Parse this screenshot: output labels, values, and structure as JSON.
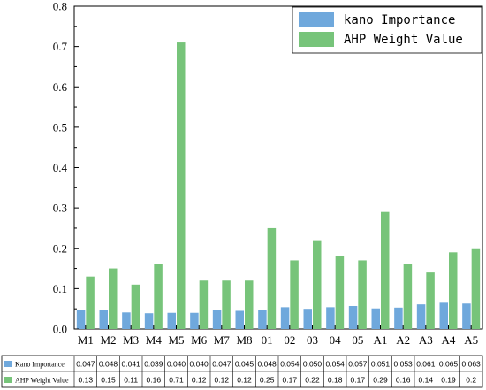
{
  "chart_data": {
    "type": "bar",
    "categories": [
      "M1",
      "M2",
      "M3",
      "M4",
      "M5",
      "M6",
      "M7",
      "M8",
      "O1",
      "O2",
      "O3",
      "O4",
      "O5",
      "A1",
      "A2",
      "A3",
      "A4",
      "A5"
    ],
    "category_labels": [
      "M1",
      "M2",
      "M3",
      "M4",
      "M5",
      "M6",
      "M7",
      "M8",
      "01",
      "02",
      "03",
      "04",
      "05",
      "A1",
      "A2",
      "A3",
      "A4",
      "A5"
    ],
    "series": [
      {
        "name": "kano Importance",
        "table_name": "Kano Importance",
        "color": "#6fa8dc",
        "values": [
          0.047,
          0.048,
          0.041,
          0.039,
          0.04,
          0.04,
          0.047,
          0.045,
          0.048,
          0.054,
          0.05,
          0.054,
          0.057,
          0.051,
          0.053,
          0.061,
          0.065,
          0.063
        ],
        "value_labels": [
          "0.047",
          "0.048",
          "0.041",
          "0.039",
          "0.040",
          "0.040",
          "0.047",
          "0.045",
          "0.048",
          "0.054",
          "0.050",
          "0.054",
          "0.057",
          "0.051",
          "0.053",
          "0.061",
          "0.065",
          "0.063"
        ]
      },
      {
        "name": "AHP Weight Value",
        "table_name": "AHP Weight Value",
        "color": "#77c47a",
        "values": [
          0.13,
          0.15,
          0.11,
          0.16,
          0.71,
          0.12,
          0.12,
          0.12,
          0.25,
          0.17,
          0.22,
          0.18,
          0.17,
          0.29,
          0.16,
          0.14,
          0.19,
          0.2
        ],
        "value_labels": [
          "0.13",
          "0.15",
          "0.11",
          "0.16",
          "0.71",
          "0.12",
          "0.12",
          "0.12",
          "0.25",
          "0.17",
          "0.22",
          "0.18",
          "0.17",
          "0.29",
          "0.16",
          "0.14",
          "0.19",
          "0.2"
        ]
      }
    ],
    "yticks": [
      "0.0",
      "0.1",
      "0.2",
      "0.3",
      "0.4",
      "0.5",
      "0.6",
      "0.7",
      "0.8"
    ],
    "ylim": [
      0,
      0.8
    ],
    "title": "",
    "xlabel": "",
    "ylabel": "",
    "legend_position": "top-right",
    "grid": false,
    "data_table": true
  }
}
